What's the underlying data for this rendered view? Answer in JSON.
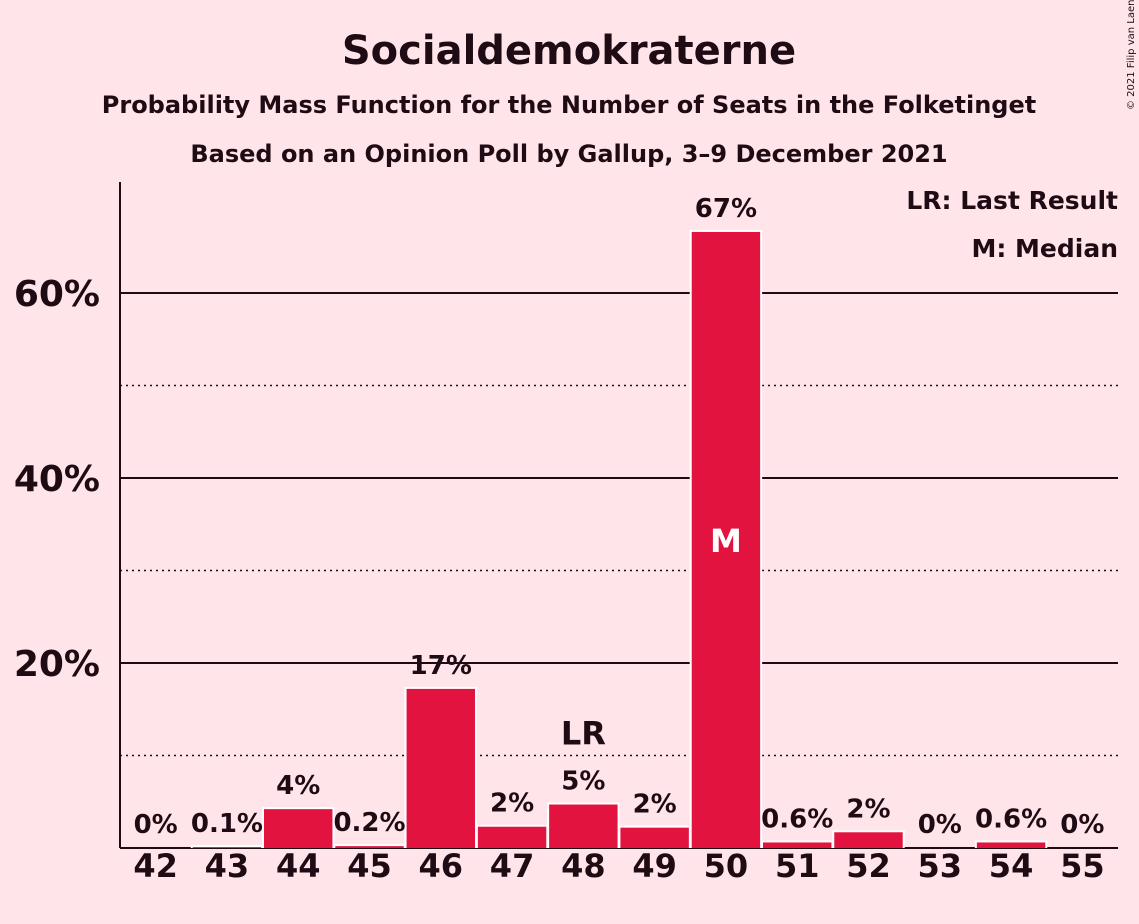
{
  "chart_data": {
    "type": "bar",
    "title": "Socialdemokraterne",
    "subtitle": "Probability Mass Function for the Number of Seats in the Folketinget",
    "subtitle2": "Based on an Opinion Poll by Gallup, 3–9 December 2021",
    "copyright": "© 2021 Filip van Laenen",
    "categories": [
      "42",
      "43",
      "44",
      "45",
      "46",
      "47",
      "48",
      "49",
      "50",
      "51",
      "52",
      "53",
      "54",
      "55"
    ],
    "values": [
      0,
      0.1,
      4.2,
      0.2,
      17.2,
      2.3,
      4.7,
      2.2,
      66.6,
      0.6,
      1.7,
      0,
      0.6,
      0
    ],
    "labels": [
      "0%",
      "0.1%",
      "4%",
      "0.2%",
      "17%",
      "2%",
      "5%",
      "2%",
      "67%",
      "0.6%",
      "2%",
      "0%",
      "0.6%",
      "0%"
    ],
    "ylim": [
      0,
      72
    ],
    "yticks": [
      20,
      40,
      60
    ],
    "ytick_labels": [
      "20%",
      "40%",
      "60%"
    ],
    "minor_gridlines": [
      10,
      30,
      50
    ],
    "last_result": {
      "category": "48",
      "label": "LR"
    },
    "median": {
      "category": "50",
      "label": "M"
    },
    "legend": [
      "LR: Last Result",
      "M: Median"
    ],
    "legend_position": "top-right",
    "bar_color": "#e3133f",
    "background": "#ffe5ea",
    "text_color": "#1f0b14"
  }
}
